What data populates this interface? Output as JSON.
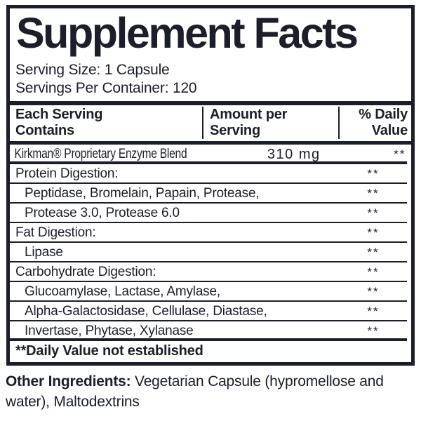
{
  "ink_color": "#1c1e29",
  "title": "Supplement Facts",
  "serving": {
    "size_line": "Serving Size: 1 Capsule",
    "per_container_line": "Servings Per Container: 120"
  },
  "table": {
    "headers": {
      "col1_line1": "Each Serving",
      "col1_line2": "Contains",
      "col2_line1": "Amount per",
      "col2_line2": "Serving",
      "col3_line1": "% Daily",
      "col3_line2": "Value"
    },
    "rows": [
      {
        "name": "Kirkman® Proprietary Enzyme Blend",
        "amount": "310 mg",
        "dv": "**",
        "indent": false,
        "condensed": true,
        "thick_bottom": true
      },
      {
        "name": "Protein Digestion:",
        "amount": "",
        "dv": "**",
        "indent": false,
        "condensed": false,
        "thick_bottom": false
      },
      {
        "name": "Peptidase, Bromelain, Papain, Protease,",
        "amount": "",
        "dv": "**",
        "indent": true,
        "condensed": false,
        "thick_bottom": false
      },
      {
        "name": "Protease 3.0, Protease 6.0",
        "amount": "",
        "dv": "**",
        "indent": true,
        "condensed": false,
        "thick_bottom": false
      },
      {
        "name": "Fat Digestion:",
        "amount": "",
        "dv": "**",
        "indent": false,
        "condensed": false,
        "thick_bottom": false
      },
      {
        "name": "Lipase",
        "amount": "",
        "dv": "**",
        "indent": true,
        "condensed": false,
        "thick_bottom": false
      },
      {
        "name": "Carbohydrate Digestion:",
        "amount": "",
        "dv": "**",
        "indent": false,
        "condensed": false,
        "thick_bottom": false
      },
      {
        "name": "Glucoamylase, Lactase, Amylase,",
        "amount": "",
        "dv": "**",
        "indent": true,
        "condensed": false,
        "thick_bottom": false
      },
      {
        "name": "Alpha-Galactosidase, Cellulase, Diastase,",
        "amount": "",
        "dv": "**",
        "indent": true,
        "condensed": false,
        "thick_bottom": false
      },
      {
        "name": "Invertase, Phytase, Xylanase",
        "amount": "",
        "dv": "**",
        "indent": true,
        "condensed": false,
        "thick_bottom": true
      }
    ],
    "footnote": "**Daily Value not established"
  },
  "other_ingredients": {
    "label": "Other Ingredients:",
    "text": " Vegetarian Capsule (hypromellose and water), Maltodextrins"
  }
}
